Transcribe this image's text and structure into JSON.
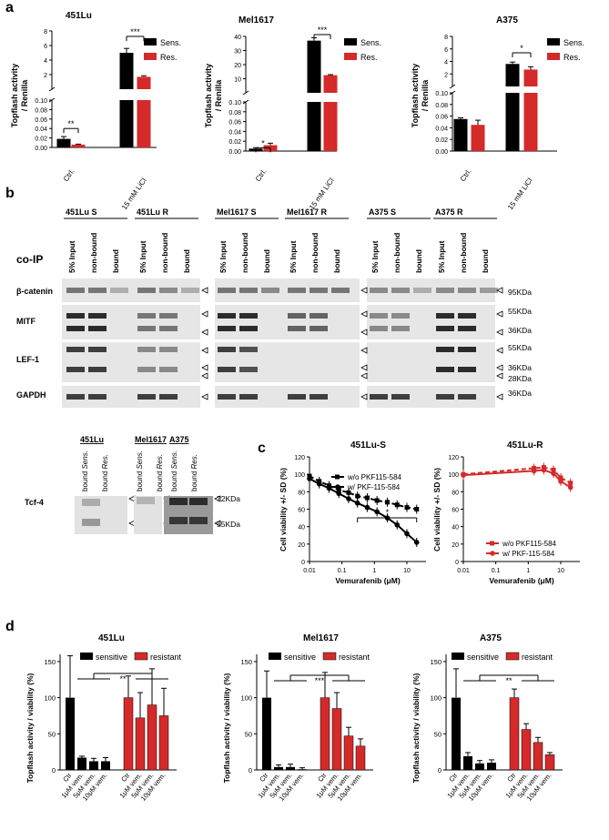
{
  "panel_letters": [
    "a",
    "b",
    "c",
    "d"
  ],
  "colors": {
    "sens": "#000000",
    "res": "#d42a2a",
    "blot_bg": "#e6e6e6",
    "band": "#2b2b2b"
  },
  "panel_a": {
    "ylabel": "Topflash activity\n/ Renilla",
    "legend": [
      "Sens.",
      "Res."
    ],
    "charts": [
      {
        "title": "451Lu",
        "type": "bar",
        "categories": [
          "Ctrl.",
          "15 mM LiCl"
        ],
        "series": [
          {
            "name": "Sens.",
            "values": [
              0.018,
              5.0
            ],
            "errors": [
              0.005,
              0.6
            ]
          },
          {
            "name": "Res.",
            "values": [
              0.006,
              1.7
            ],
            "errors": [
              0.001,
              0.15
            ]
          }
        ],
        "yaxis": {
          "low": {
            "ticks": [
              0.0,
              0.02,
              0.04,
              0.06,
              0.08,
              0.1
            ]
          },
          "high": {
            "ticks": [
              2,
              4,
              6,
              8
            ]
          }
        },
        "sig": [
          "**",
          "***"
        ]
      },
      {
        "title": "Mel1617",
        "type": "bar",
        "categories": [
          "Ctrl.",
          "15 mM LiCl"
        ],
        "series": [
          {
            "name": "Sens.",
            "values": [
              0.005,
              37
            ],
            "errors": [
              0.002,
              2
            ]
          },
          {
            "name": "Res.",
            "values": [
              0.012,
              12.5
            ],
            "errors": [
              0.004,
              0.4
            ]
          }
        ],
        "yaxis": {
          "low": {
            "ticks": [
              0.0,
              0.02,
              0.04,
              0.06,
              0.08,
              0.1
            ]
          },
          "high": {
            "ticks": [
              10,
              20,
              30,
              40
            ]
          }
        },
        "sig": [
          "*",
          "***"
        ]
      },
      {
        "title": "A375",
        "type": "bar",
        "categories": [
          "Ctrl.",
          "15 mM LiCl"
        ],
        "series": [
          {
            "name": "Sens.",
            "values": [
              0.055,
              3.6
            ],
            "errors": [
              0.002,
              0.3
            ]
          },
          {
            "name": "Res.",
            "values": [
              0.045,
              2.7
            ],
            "errors": [
              0.008,
              0.45
            ]
          }
        ],
        "yaxis": {
          "low": {
            "ticks": [
              0.0,
              0.02,
              0.04,
              0.06,
              0.08,
              0.1
            ]
          },
          "high": {
            "ticks": [
              2,
              4,
              6,
              8
            ]
          }
        },
        "sig": [
          "*"
        ]
      }
    ]
  },
  "panel_b": {
    "coip_label": "co-IP",
    "groups": [
      "451Lu S",
      "451Lu R",
      "Mel1617 S",
      "Mel1617 R",
      "A375 S",
      "A375 R"
    ],
    "lanes": [
      "5% Input",
      "non-bound",
      "bound"
    ],
    "rows": [
      "β-catenin",
      "MITF",
      "LEF-1",
      "GAPDH"
    ],
    "kda": [
      "95KDa",
      "55KDa",
      "36KDa",
      "55KDa",
      "36KDa",
      "28KDa",
      "36KDa"
    ],
    "tcf": {
      "label": "Tcf-4",
      "groups": [
        "451Lu",
        "Mel1617",
        "A375"
      ],
      "lanes": [
        [
          "bound",
          "Sens."
        ],
        [
          "bound",
          "Res."
        ]
      ],
      "kda": [
        "72KDa",
        "55KDa"
      ]
    }
  },
  "panel_c": {
    "ylabel": "Cell viability +/- SD (%)",
    "xlabel": "Vemurafenib (μM)",
    "charts": [
      {
        "title": "451Lu-S",
        "type": "line",
        "color": "#000000",
        "x_ticks": [
          "0.01",
          "0.1",
          "1",
          "10"
        ],
        "y_ticks": [
          "0",
          "20",
          "40",
          "60",
          "80",
          "100",
          "120"
        ],
        "series": [
          {
            "name": "w/o PKF115-584",
            "x": [
              0.01,
              0.02,
              0.04,
              0.08,
              0.16,
              0.3,
              0.6,
              1.2,
              2.5,
              5,
              10,
              20
            ],
            "y": [
              98,
              92,
              87,
              82,
              79,
              75,
              73,
              70,
              68,
              65,
              62,
              60
            ]
          },
          {
            "name": "w/ PKF-115-584",
            "x": [
              0.01,
              0.02,
              0.04,
              0.08,
              0.16,
              0.3,
              0.6,
              1.2,
              2.5,
              5,
              10,
              20
            ],
            "y": [
              95,
              89,
              84,
              78,
              72,
              67,
              62,
              57,
              50,
              42,
              32,
              22
            ]
          }
        ],
        "sig": "*"
      },
      {
        "title": "451Lu-R",
        "type": "line",
        "color": "#d42a2a",
        "x_ticks": [
          "0.01",
          "0.1",
          "1",
          "10"
        ],
        "y_ticks": [
          "0",
          "20",
          "40",
          "60",
          "80",
          "100",
          "120"
        ],
        "series": [
          {
            "name": "w/o PKF115-584",
            "x": [
              0.01,
              1.5,
              3,
              6,
              10,
              20
            ],
            "y": [
              100,
              107,
              108,
              105,
              96,
              90
            ]
          },
          {
            "name": "w/ PKF-115-584",
            "x": [
              0.01,
              1.5,
              3,
              6,
              10,
              20
            ],
            "y": [
              99,
              104,
              105,
              101,
              92,
              85
            ]
          }
        ]
      }
    ]
  },
  "panel_d": {
    "ylabel": "Topflash activity / viability (%)",
    "legend": [
      "sensitive",
      "resistant"
    ],
    "categories": [
      "Ctr",
      "1μM vem.",
      "5μM vem.",
      "10μM vem.",
      "Ctr",
      "1μM vem.",
      "5μM vem.",
      "10μM vem."
    ],
    "charts": [
      {
        "title": "451Lu",
        "type": "bar",
        "y_ticks": [
          "0",
          "50",
          "100",
          "150"
        ],
        "sensitive": {
          "values": [
            100,
            17,
            12,
            12
          ],
          "errors": [
            58,
            2,
            4,
            5
          ]
        },
        "resistant": {
          "values": [
            100,
            72,
            90,
            75
          ],
          "errors": [
            30,
            35,
            50,
            38
          ]
        },
        "sig": "**"
      },
      {
        "title": "Mel1617",
        "type": "bar",
        "y_ticks": [
          "0",
          "50",
          "100",
          "150"
        ],
        "sensitive": {
          "values": [
            100,
            4,
            4,
            1
          ],
          "errors": [
            37,
            3,
            4,
            2
          ]
        },
        "resistant": {
          "values": [
            100,
            85,
            47,
            33
          ],
          "errors": [
            35,
            22,
            12,
            10
          ]
        },
        "sig": "***"
      },
      {
        "title": "A375",
        "type": "bar",
        "y_ticks": [
          "0",
          "50",
          "100",
          "150"
        ],
        "sensitive": {
          "values": [
            100,
            19,
            9,
            10
          ],
          "errors": [
            40,
            5,
            4,
            4
          ]
        },
        "resistant": {
          "values": [
            100,
            56,
            38,
            21
          ],
          "errors": [
            12,
            8,
            7,
            3
          ]
        },
        "sig": "**"
      }
    ]
  }
}
